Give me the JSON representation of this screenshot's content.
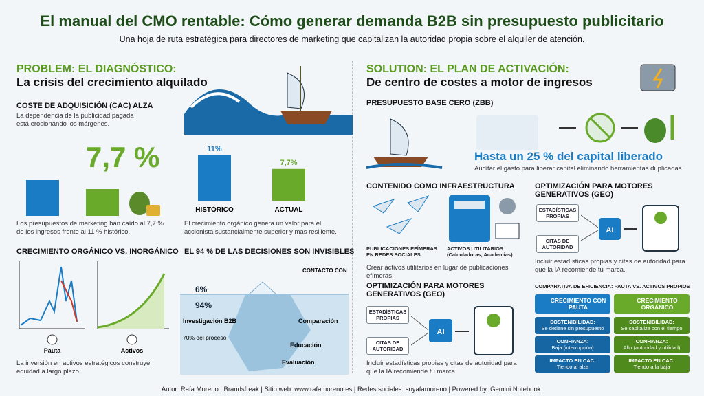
{
  "header": {
    "title": "El manual del CMO rentable: Cómo generar demanda B2B sin presupuesto publicitario",
    "subtitle": "Una hoja de ruta estratégica para directores de marketing que capitalizan la autoridad propia sobre el alquiler de atención."
  },
  "problem": {
    "label": "PROBLEM: EL DIAGNÓSTICO:",
    "heading": "La crisis del crecimiento alquilado",
    "cac": {
      "title": "COSTE DE ADQUISICIÓN (CAC) ALZA",
      "text": "La dependencia de la publicidad pagada está erosionando los márgenes.",
      "big": "7,7 %",
      "caption": "Los presupuestos de marketing han caído al 7,7 % de los ingresos frente al 11 % histórico."
    },
    "chart": {
      "categories": [
        "HISTÓRICO",
        "ACTUAL"
      ],
      "values": [
        11,
        7.7
      ],
      "value_labels": [
        "11%",
        "7,7%"
      ],
      "colors": [
        "#1a7cc4",
        "#6aaa2a"
      ],
      "caption": "El crecimiento orgánico genera un valor para el accionista sustancialmente superior y más resiliente."
    },
    "growth": {
      "title": "CRECIMIENTO ORGÁNICO VS. INORGÁNICO",
      "labels": [
        "Pauta",
        "Activos"
      ],
      "caption": "La inversión en activos estratégicos construye equidad a largo plazo."
    },
    "iceberg": {
      "title": "EL 94 % DE LAS DECISIONES SON INVISIBLES",
      "top": "6%",
      "bottom": "94%",
      "contact": "CONTACTO CON VENTAS",
      "research": "Investigación B2B",
      "research_note": "70% del proceso",
      "stages": [
        "Comparación",
        "Educación",
        "Evaluación"
      ]
    }
  },
  "solution": {
    "label": "SOLUTION: EL PLAN DE ACTIVACIÓN:",
    "heading": "De centro de costes a motor de ingresos",
    "zbb": {
      "title": "PRESUPUESTO BASE CERO (ZBB)",
      "headline": "Hasta un 25 % del capital liberado",
      "text": "Auditar el gasto para liberar capital eliminando herramientas duplicadas."
    },
    "content": {
      "title": "CONTENIDO COMO INFRAESTRUCTURA",
      "left_label": "PUBLICACIONES EFÍMERAS EN REDES SOCIALES",
      "right_label": "ACTIVOS UTILITARIOS (Calculadoras, Academias)",
      "text": "Crear activos utilitarios en lugar de publicaciones efímeras."
    },
    "geo_top": {
      "title": "OPTIMIZACIÓN PARA MOTORES GENERATIVOS (GEO)",
      "boxes": [
        "ESTADÍSTICAS PROPIAS",
        "CITAS DE AUTORIDAD"
      ],
      "ai": "AI",
      "text": "Incluir estadísticas propias y citas de autoridad para que la IA recomiende tu marca."
    },
    "geo_bottom": {
      "title": "OPTIMIZACIÓN PARA MOTORES GENERATIVOS (GEO)",
      "boxes": [
        "ESTADÍSTICAS PROPIAS",
        "CITAS DE AUTORIDAD"
      ],
      "ai": "AI",
      "text": "Incluir estadísticas propias y citas de autoridad para que la IA recomiende tu marca."
    },
    "comparison": {
      "title": "COMPARATIVA DE EFICIENCIA: PAUTA VS. ACTIVOS PROPIOS",
      "columns": [
        {
          "header": "CRECIMIENTO CON PAUTA",
          "rows": [
            {
              "label": "SOSTENIBILIDAD:",
              "value": "Se detiene sin presupuesto"
            },
            {
              "label": "CONFIANZA:",
              "value": "Baja (interrupción)"
            },
            {
              "label": "IMPACTO EN CAC:",
              "value": "Tiendo al alza"
            }
          ]
        },
        {
          "header": "CRECIMIENTO ORGÁNICO",
          "rows": [
            {
              "label": "SOSTENIBILIDAD:",
              "value": "Se capitaliza con el tiempo"
            },
            {
              "label": "CONFIANZA:",
              "value": "Alto (autoridad y utilidad)"
            },
            {
              "label": "IMPACTO EN CAC:",
              "value": "Tiendo a la baja"
            }
          ]
        }
      ]
    }
  },
  "footer": "Autor: Rafa Moreno | Brandsfreak | Sitio web: www.rafamoreno.es | Redes sociales: soyafamoreno | Powered by: Gemini Notebook."
}
